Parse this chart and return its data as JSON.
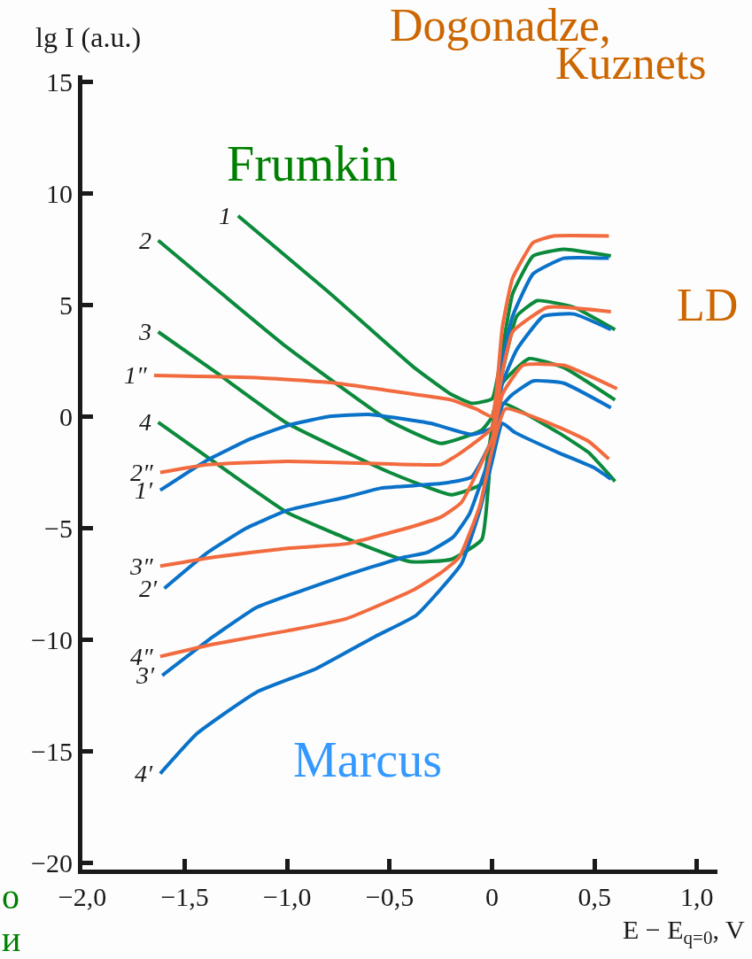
{
  "chart_data": {
    "type": "line",
    "xlabel": "E − E$_{q=0}$, V",
    "ylabel": "lg I (a.u.)",
    "xlim": [
      -2.0,
      1.1
    ],
    "ylim": [
      -20.3,
      15.3
    ],
    "xticks": [
      {
        "value": -2.0,
        "label": "−2,0"
      },
      {
        "value": -1.5,
        "label": "−1,5"
      },
      {
        "value": -1.0,
        "label": "−1,0"
      },
      {
        "value": -0.5,
        "label": "−0,5"
      },
      0,
      {
        "value": 0.5,
        "label": "0,5"
      },
      {
        "value": 1.0,
        "label": "1,0"
      }
    ],
    "yticks": [
      {
        "value": -20,
        "label": "−20"
      },
      {
        "value": -15,
        "label": "−15"
      },
      {
        "value": -10,
        "label": "−10"
      },
      {
        "value": -5,
        "label": "−5"
      },
      0,
      5,
      10,
      15
    ],
    "grid": false,
    "legend": false,
    "marker": "none",
    "line_style": "solid",
    "annotations": [
      "Frumkin",
      "Marcus",
      "Dogonadze,",
      "Kuznets",
      "LD",
      "о",
      "и"
    ],
    "series": [
      {
        "name": "1",
        "color": "#0b8a3c",
        "x": [
          -1.24,
          -0.8,
          -0.38,
          -0.2,
          -0.1,
          0,
          0.05,
          0.1,
          0.2,
          0.35,
          0.58
        ],
        "values": [
          9.0,
          5.6,
          2.2,
          1.0,
          0.6,
          0.8,
          3.0,
          5.5,
          7.2,
          7.5,
          7.2
        ]
      },
      {
        "name": "2",
        "color": "#0b8a3c",
        "x": [
          -1.63,
          -1.0,
          -0.5,
          -0.25,
          -0.05,
          0,
          0.05,
          0.12,
          0.22,
          0.4,
          0.6
        ],
        "values": [
          7.9,
          3.1,
          -0.2,
          -1.2,
          -0.6,
          0.0,
          2.0,
          4.5,
          5.2,
          4.9,
          3.9
        ]
      },
      {
        "name": "3",
        "color": "#0b8a3c",
        "x": [
          -1.63,
          -1.35,
          -1.0,
          -0.5,
          -0.2,
          -0.05,
          0,
          0.05,
          0.18,
          0.35,
          0.6
        ],
        "values": [
          3.8,
          2.0,
          -0.3,
          -2.5,
          -3.5,
          -3.0,
          -0.5,
          1.5,
          2.6,
          2.2,
          0.75
        ]
      },
      {
        "name": "4",
        "color": "#0b8a3c",
        "x": [
          -1.63,
          -1.3,
          -1.0,
          -0.7,
          -0.4,
          -0.2,
          -0.05,
          0,
          0.05,
          0.32,
          0.47,
          0.6
        ],
        "values": [
          -0.25,
          -2.4,
          -4.3,
          -5.5,
          -6.5,
          -6.4,
          -5.5,
          -1.0,
          0.6,
          -0.7,
          -1.6,
          -2.9
        ]
      },
      {
        "name": "1′",
        "color": "#0a72c8",
        "x": [
          -1.62,
          -1.4,
          -1.18,
          -1.0,
          -0.8,
          -0.6,
          -0.3,
          -0.1,
          0,
          0.05,
          0.1,
          0.2,
          0.35,
          0.57
        ],
        "values": [
          -3.3,
          -2.0,
          -1.0,
          -0.4,
          0.0,
          0.1,
          -0.3,
          -0.8,
          -0.5,
          2.5,
          4.5,
          6.4,
          7.1,
          7.1
        ]
      },
      {
        "name": "2′",
        "color": "#0a72c8",
        "x": [
          -1.6,
          -1.39,
          -1.2,
          -1.0,
          -0.71,
          -0.54,
          -0.25,
          -0.1,
          0,
          0.05,
          0.12,
          0.25,
          0.4,
          0.58
        ],
        "values": [
          -7.7,
          -6.1,
          -5.0,
          -4.2,
          -3.6,
          -3.2,
          -3.0,
          -2.7,
          -1.0,
          1.5,
          3.0,
          4.5,
          4.6,
          3.9
        ]
      },
      {
        "name": "3′",
        "color": "#0a72c8",
        "x": [
          -1.61,
          -1.36,
          -1.15,
          -0.93,
          -0.71,
          -0.43,
          -0.32,
          -0.19,
          -0.11,
          -0.06,
          0,
          0.05,
          0.1,
          0.2,
          0.35,
          0.58
        ],
        "values": [
          -11.6,
          -9.85,
          -8.55,
          -7.8,
          -7.1,
          -6.3,
          -6.1,
          -5.4,
          -4.35,
          -3.1,
          -1.5,
          0.5,
          1.0,
          1.6,
          1.5,
          0.4
        ]
      },
      {
        "name": "4′",
        "color": "#0a72c8",
        "x": [
          -1.62,
          -1.44,
          -1.15,
          -0.86,
          -0.57,
          -0.37,
          -0.15,
          -0.06,
          0,
          0.05,
          0.11,
          0.32,
          0.5,
          0.58
        ],
        "values": [
          -16.0,
          -14.2,
          -12.35,
          -11.3,
          -9.85,
          -8.9,
          -6.6,
          -4.2,
          -2.0,
          -0.3,
          -0.7,
          -1.6,
          -2.3,
          -2.8
        ]
      },
      {
        "name": "1″",
        "color": "#f26b3f",
        "x": [
          -1.65,
          -1.15,
          -0.76,
          -0.38,
          -0.2,
          -0.08,
          0,
          0.02,
          0.05,
          0.1,
          0.2,
          0.3,
          0.57
        ],
        "values": [
          1.85,
          1.75,
          1.5,
          1.0,
          0.75,
          0.35,
          0.0,
          1.0,
          4.0,
          6.2,
          7.8,
          8.1,
          8.1
        ]
      },
      {
        "name": "2″",
        "color": "#f26b3f",
        "x": [
          -1.62,
          -1.39,
          -1.0,
          -0.38,
          -0.25,
          -0.15,
          0,
          0.05,
          0.1,
          0.27,
          0.58
        ],
        "values": [
          -2.5,
          -2.15,
          -2.0,
          -2.15,
          -2.15,
          -1.6,
          -0.5,
          2.0,
          3.8,
          4.9,
          4.7
        ]
      },
      {
        "name": "3″",
        "color": "#f26b3f",
        "x": [
          -1.62,
          -1.36,
          -1.0,
          -0.71,
          -0.38,
          -0.25,
          -0.15,
          0,
          0.05,
          0.15,
          0.35,
          0.61
        ],
        "values": [
          -6.7,
          -6.3,
          -5.9,
          -5.7,
          -4.9,
          -4.5,
          -3.85,
          -1.0,
          1.0,
          2.3,
          2.3,
          1.25
        ]
      },
      {
        "name": "4″",
        "color": "#f26b3f",
        "x": [
          -1.62,
          -1.36,
          -1.0,
          -0.71,
          -0.38,
          -0.25,
          -0.16,
          -0.06,
          0,
          0.065,
          0.32,
          0.47,
          0.57
        ],
        "values": [
          -10.75,
          -10.2,
          -9.6,
          -9.05,
          -7.75,
          -7.0,
          -6.3,
          -4.0,
          -1.5,
          0.35,
          -0.45,
          -1.1,
          -1.9
        ]
      }
    ]
  }
}
